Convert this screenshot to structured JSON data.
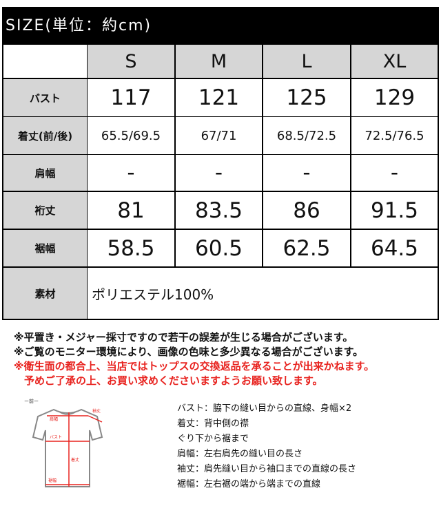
{
  "title": "SIZE(単位：約cm)",
  "sizes": [
    "S",
    "M",
    "L",
    "XL"
  ],
  "rows": [
    {
      "label": "バスト",
      "values": [
        "117",
        "121",
        "125",
        "129"
      ]
    },
    {
      "label": "着丈(前/後)",
      "values": [
        "65.5/69.5",
        "67/71",
        "68.5/72.5",
        "72.5/76.5"
      ]
    },
    {
      "label": "肩幅",
      "values": [
        "-",
        "-",
        "-",
        "-"
      ]
    },
    {
      "label": "裄丈",
      "values": [
        "81",
        "83.5",
        "86",
        "91.5"
      ]
    },
    {
      "label": "裾幅",
      "values": [
        "58.5",
        "60.5",
        "62.5",
        "64.5"
      ]
    }
  ],
  "material": {
    "label": "素材",
    "value": "ポリエステル100%"
  },
  "notes": [
    "※平置き・メジャー採寸ですので若干の誤差が生じる場合がございます。",
    "※ご覧のモニター環境により、画像の色味と多少異なる場合がございます。"
  ],
  "warnings": [
    "※衛生面の都合上、当店ではトップスの交換返品を承ることが出来かねます。",
    "　予めご了承の上、お買い求めくださいますようお願い致します。"
  ],
  "diagram": {
    "front_label": "ー前ー",
    "labels": [
      "肩幅",
      "袖丈",
      "バスト",
      "着丈",
      "裾幅"
    ],
    "line_color": "#e8231f"
  },
  "definitions": [
    "バスト：脇下の縫い目からの直線、身幅×2",
    "着丈：背中側の襟",
    "ぐり下から裾まで",
    "肩幅：左右肩先の縫い目の長さ",
    "袖丈：肩先縫い目から袖口までの直線の長さ",
    "裾幅：左右裾の端から端までの直線"
  ]
}
